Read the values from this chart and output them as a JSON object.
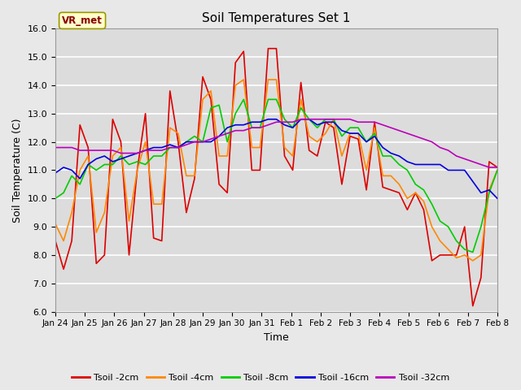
{
  "title": "Soil Temperatures Set 1",
  "xlabel": "Time",
  "ylabel": "Soil Temperature (C)",
  "fig_bg_color": "#e8e8e8",
  "plot_bg_color": "#dcdcdc",
  "ylim": [
    6.0,
    16.0
  ],
  "yticks": [
    6.0,
    7.0,
    8.0,
    9.0,
    10.0,
    11.0,
    12.0,
    13.0,
    14.0,
    15.0,
    16.0
  ],
  "xtick_labels": [
    "Jan 24",
    "Jan 25",
    "Jan 26",
    "Jan 27",
    "Jan 28",
    "Jan 29",
    "Jan 30",
    "Jan 31",
    "Feb 1",
    "Feb 2",
    "Feb 3",
    "Feb 4",
    "Feb 5",
    "Feb 6",
    "Feb 7",
    "Feb 8"
  ],
  "colors": {
    "Tsoil -2cm": "#dd0000",
    "Tsoil -4cm": "#ff8800",
    "Tsoil -8cm": "#00cc00",
    "Tsoil -16cm": "#0000dd",
    "Tsoil -32cm": "#bb00bb"
  },
  "legend_label": "VR_met",
  "legend_box_facecolor": "#ffffcc",
  "legend_box_edgecolor": "#999900",
  "legend_text_color": "#880000",
  "series": {
    "Tsoil -2cm": [
      8.5,
      7.5,
      8.5,
      12.6,
      11.8,
      7.7,
      8.0,
      12.8,
      12.0,
      8.0,
      11.0,
      13.0,
      8.6,
      8.5,
      13.8,
      12.0,
      9.5,
      10.7,
      14.3,
      13.5,
      10.5,
      10.2,
      14.8,
      15.2,
      11.0,
      11.0,
      15.3,
      15.3,
      11.5,
      11.0,
      14.1,
      11.7,
      11.5,
      12.7,
      12.5,
      10.5,
      12.2,
      12.1,
      10.3,
      12.7,
      10.4,
      10.3,
      10.2,
      9.6,
      10.2,
      9.6,
      7.8,
      8.0,
      8.0,
      8.0,
      9.0,
      6.2,
      7.2,
      11.3,
      11.1
    ],
    "Tsoil -4cm": [
      9.1,
      8.5,
      9.5,
      11.0,
      11.5,
      8.8,
      9.5,
      11.5,
      11.8,
      9.2,
      11.0,
      12.0,
      9.8,
      9.8,
      12.5,
      12.3,
      10.8,
      10.8,
      13.5,
      13.8,
      11.5,
      11.5,
      14.0,
      14.2,
      11.8,
      11.8,
      14.2,
      14.2,
      11.8,
      11.5,
      13.5,
      12.2,
      12.0,
      12.3,
      12.8,
      11.5,
      12.3,
      12.3,
      11.0,
      12.5,
      10.8,
      10.8,
      10.5,
      10.0,
      10.2,
      9.9,
      9.0,
      8.5,
      8.2,
      7.9,
      8.0,
      7.8,
      8.0,
      10.3,
      11.0
    ],
    "Tsoil -8cm": [
      10.0,
      10.2,
      10.8,
      10.5,
      11.2,
      11.0,
      11.2,
      11.2,
      11.5,
      11.2,
      11.3,
      11.2,
      11.5,
      11.5,
      11.8,
      11.8,
      12.0,
      12.2,
      12.0,
      13.2,
      13.3,
      12.0,
      13.0,
      13.5,
      12.5,
      12.5,
      13.5,
      13.5,
      12.8,
      12.5,
      13.2,
      12.8,
      12.5,
      12.8,
      12.8,
      12.2,
      12.5,
      12.5,
      12.0,
      12.3,
      11.5,
      11.5,
      11.2,
      11.0,
      10.5,
      10.3,
      9.8,
      9.2,
      9.0,
      8.5,
      8.2,
      8.1,
      9.0,
      10.2,
      11.0
    ],
    "Tsoil -16cm": [
      10.9,
      11.1,
      11.0,
      10.7,
      11.2,
      11.4,
      11.5,
      11.3,
      11.4,
      11.5,
      11.6,
      11.7,
      11.8,
      11.8,
      11.9,
      11.8,
      12.0,
      12.0,
      12.0,
      12.0,
      12.2,
      12.5,
      12.6,
      12.6,
      12.7,
      12.7,
      12.8,
      12.8,
      12.6,
      12.5,
      12.8,
      12.8,
      12.6,
      12.7,
      12.7,
      12.4,
      12.3,
      12.3,
      12.0,
      12.2,
      11.8,
      11.6,
      11.5,
      11.3,
      11.2,
      11.2,
      11.2,
      11.2,
      11.0,
      11.0,
      11.0,
      10.6,
      10.2,
      10.3,
      10.0
    ],
    "Tsoil -32cm": [
      11.8,
      11.8,
      11.8,
      11.7,
      11.7,
      11.7,
      11.7,
      11.7,
      11.6,
      11.6,
      11.6,
      11.7,
      11.7,
      11.7,
      11.8,
      11.8,
      11.9,
      12.0,
      12.0,
      12.1,
      12.2,
      12.3,
      12.4,
      12.4,
      12.5,
      12.5,
      12.6,
      12.7,
      12.7,
      12.7,
      12.8,
      12.8,
      12.8,
      12.8,
      12.8,
      12.8,
      12.8,
      12.7,
      12.7,
      12.7,
      12.6,
      12.5,
      12.4,
      12.3,
      12.2,
      12.1,
      12.0,
      11.8,
      11.7,
      11.5,
      11.4,
      11.3,
      11.2,
      11.1,
      11.1
    ]
  }
}
